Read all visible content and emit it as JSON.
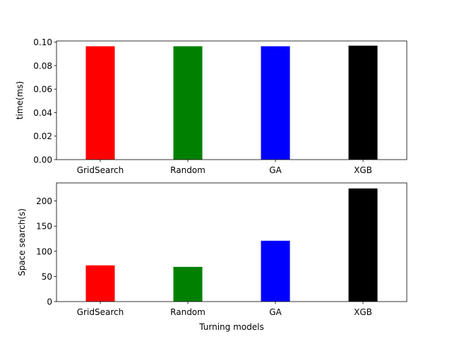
{
  "chart_data": [
    {
      "type": "bar",
      "categories": [
        "GridSearch",
        "Random",
        "GA",
        "XGB"
      ],
      "values": [
        0.0965,
        0.0965,
        0.0965,
        0.097
      ],
      "colors": [
        "#ff0000",
        "#008000",
        "#0000ff",
        "#000000"
      ],
      "xlabel": "",
      "ylabel": "time(ms)",
      "ylim": [
        0,
        0.101
      ],
      "yticks": [
        0.0,
        0.02,
        0.04,
        0.06,
        0.08,
        0.1
      ],
      "ytick_labels": [
        "0.00",
        "0.02",
        "0.04",
        "0.06",
        "0.08",
        "0.10"
      ],
      "grid": false
    },
    {
      "type": "bar",
      "categories": [
        "GridSearch",
        "Random",
        "GA",
        "XGB"
      ],
      "values": [
        72,
        69,
        121,
        225
      ],
      "colors": [
        "#ff0000",
        "#008000",
        "#0000ff",
        "#000000"
      ],
      "xlabel": "Turning models",
      "ylabel": "Space search(s)",
      "ylim": [
        0,
        236
      ],
      "yticks": [
        0,
        50,
        100,
        150,
        200
      ],
      "ytick_labels": [
        "0",
        "50",
        "100",
        "150",
        "200"
      ],
      "grid": false
    }
  ]
}
